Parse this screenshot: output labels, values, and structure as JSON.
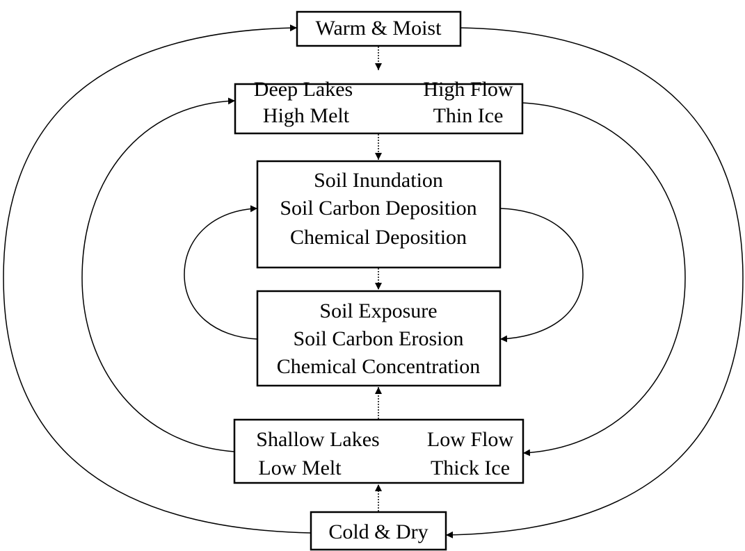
{
  "nodes": [
    {
      "lines": [
        "Warm & Moist"
      ]
    },
    {
      "left": [
        "Deep Lakes",
        "High Melt"
      ],
      "right": [
        "High Flow",
        "Thin Ice"
      ]
    },
    {
      "lines": [
        "Soil Inundation",
        "Soil Carbon Deposition",
        "Chemical Deposition"
      ]
    },
    {
      "lines": [
        "Soil Exposure",
        "Soil Carbon Erosion",
        "Chemical Concentration"
      ]
    },
    {
      "left": [
        "Shallow Lakes",
        "Low Melt"
      ],
      "right": [
        "Low Flow",
        "Thick Ice"
      ]
    },
    {
      "lines": [
        "Cold & Dry"
      ]
    }
  ]
}
